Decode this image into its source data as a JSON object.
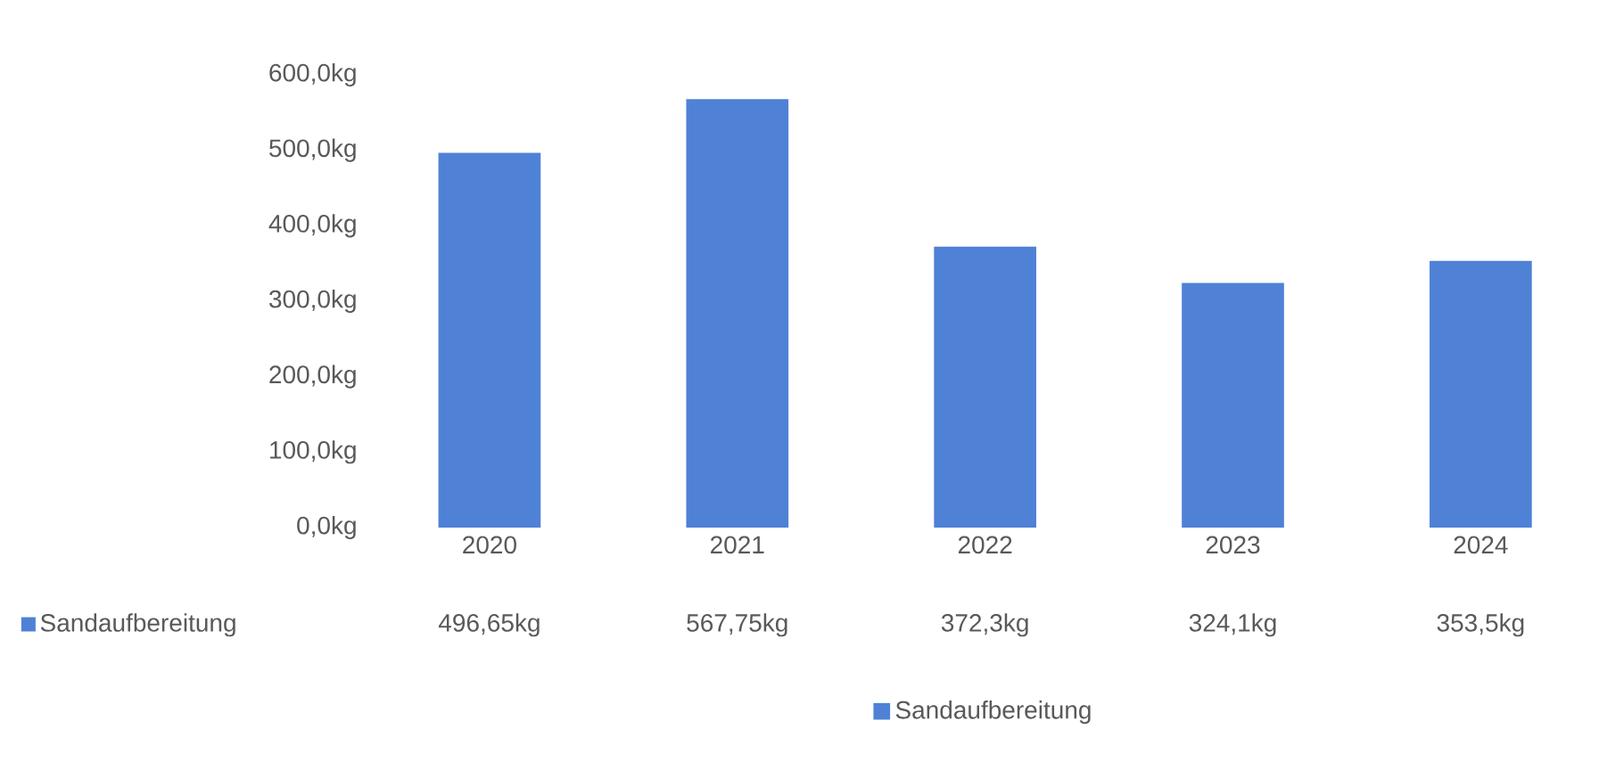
{
  "chart_data": {
    "type": "bar",
    "categories": [
      "2020",
      "2021",
      "2022",
      "2023",
      "2024"
    ],
    "series": [
      {
        "name": "Sandaufbereitung",
        "color": "#4f81d6",
        "values": [
          496.65,
          567.75,
          372.3,
          324.1,
          353.5
        ],
        "value_labels": [
          "496,65kg",
          "567,75kg",
          "372,3kg",
          "324,1kg",
          "353,5kg"
        ]
      }
    ],
    "ylim": [
      0,
      600
    ],
    "yticks": [
      {
        "value": 0,
        "label": "0,0kg"
      },
      {
        "value": 100,
        "label": "100,0kg"
      },
      {
        "value": 200,
        "label": "200,0kg"
      },
      {
        "value": 300,
        "label": "300,0kg"
      },
      {
        "value": 400,
        "label": "400,0kg"
      },
      {
        "value": 500,
        "label": "500,0kg"
      },
      {
        "value": 600,
        "label": "600,0kg"
      }
    ],
    "grid": false,
    "legend": "bottom"
  }
}
